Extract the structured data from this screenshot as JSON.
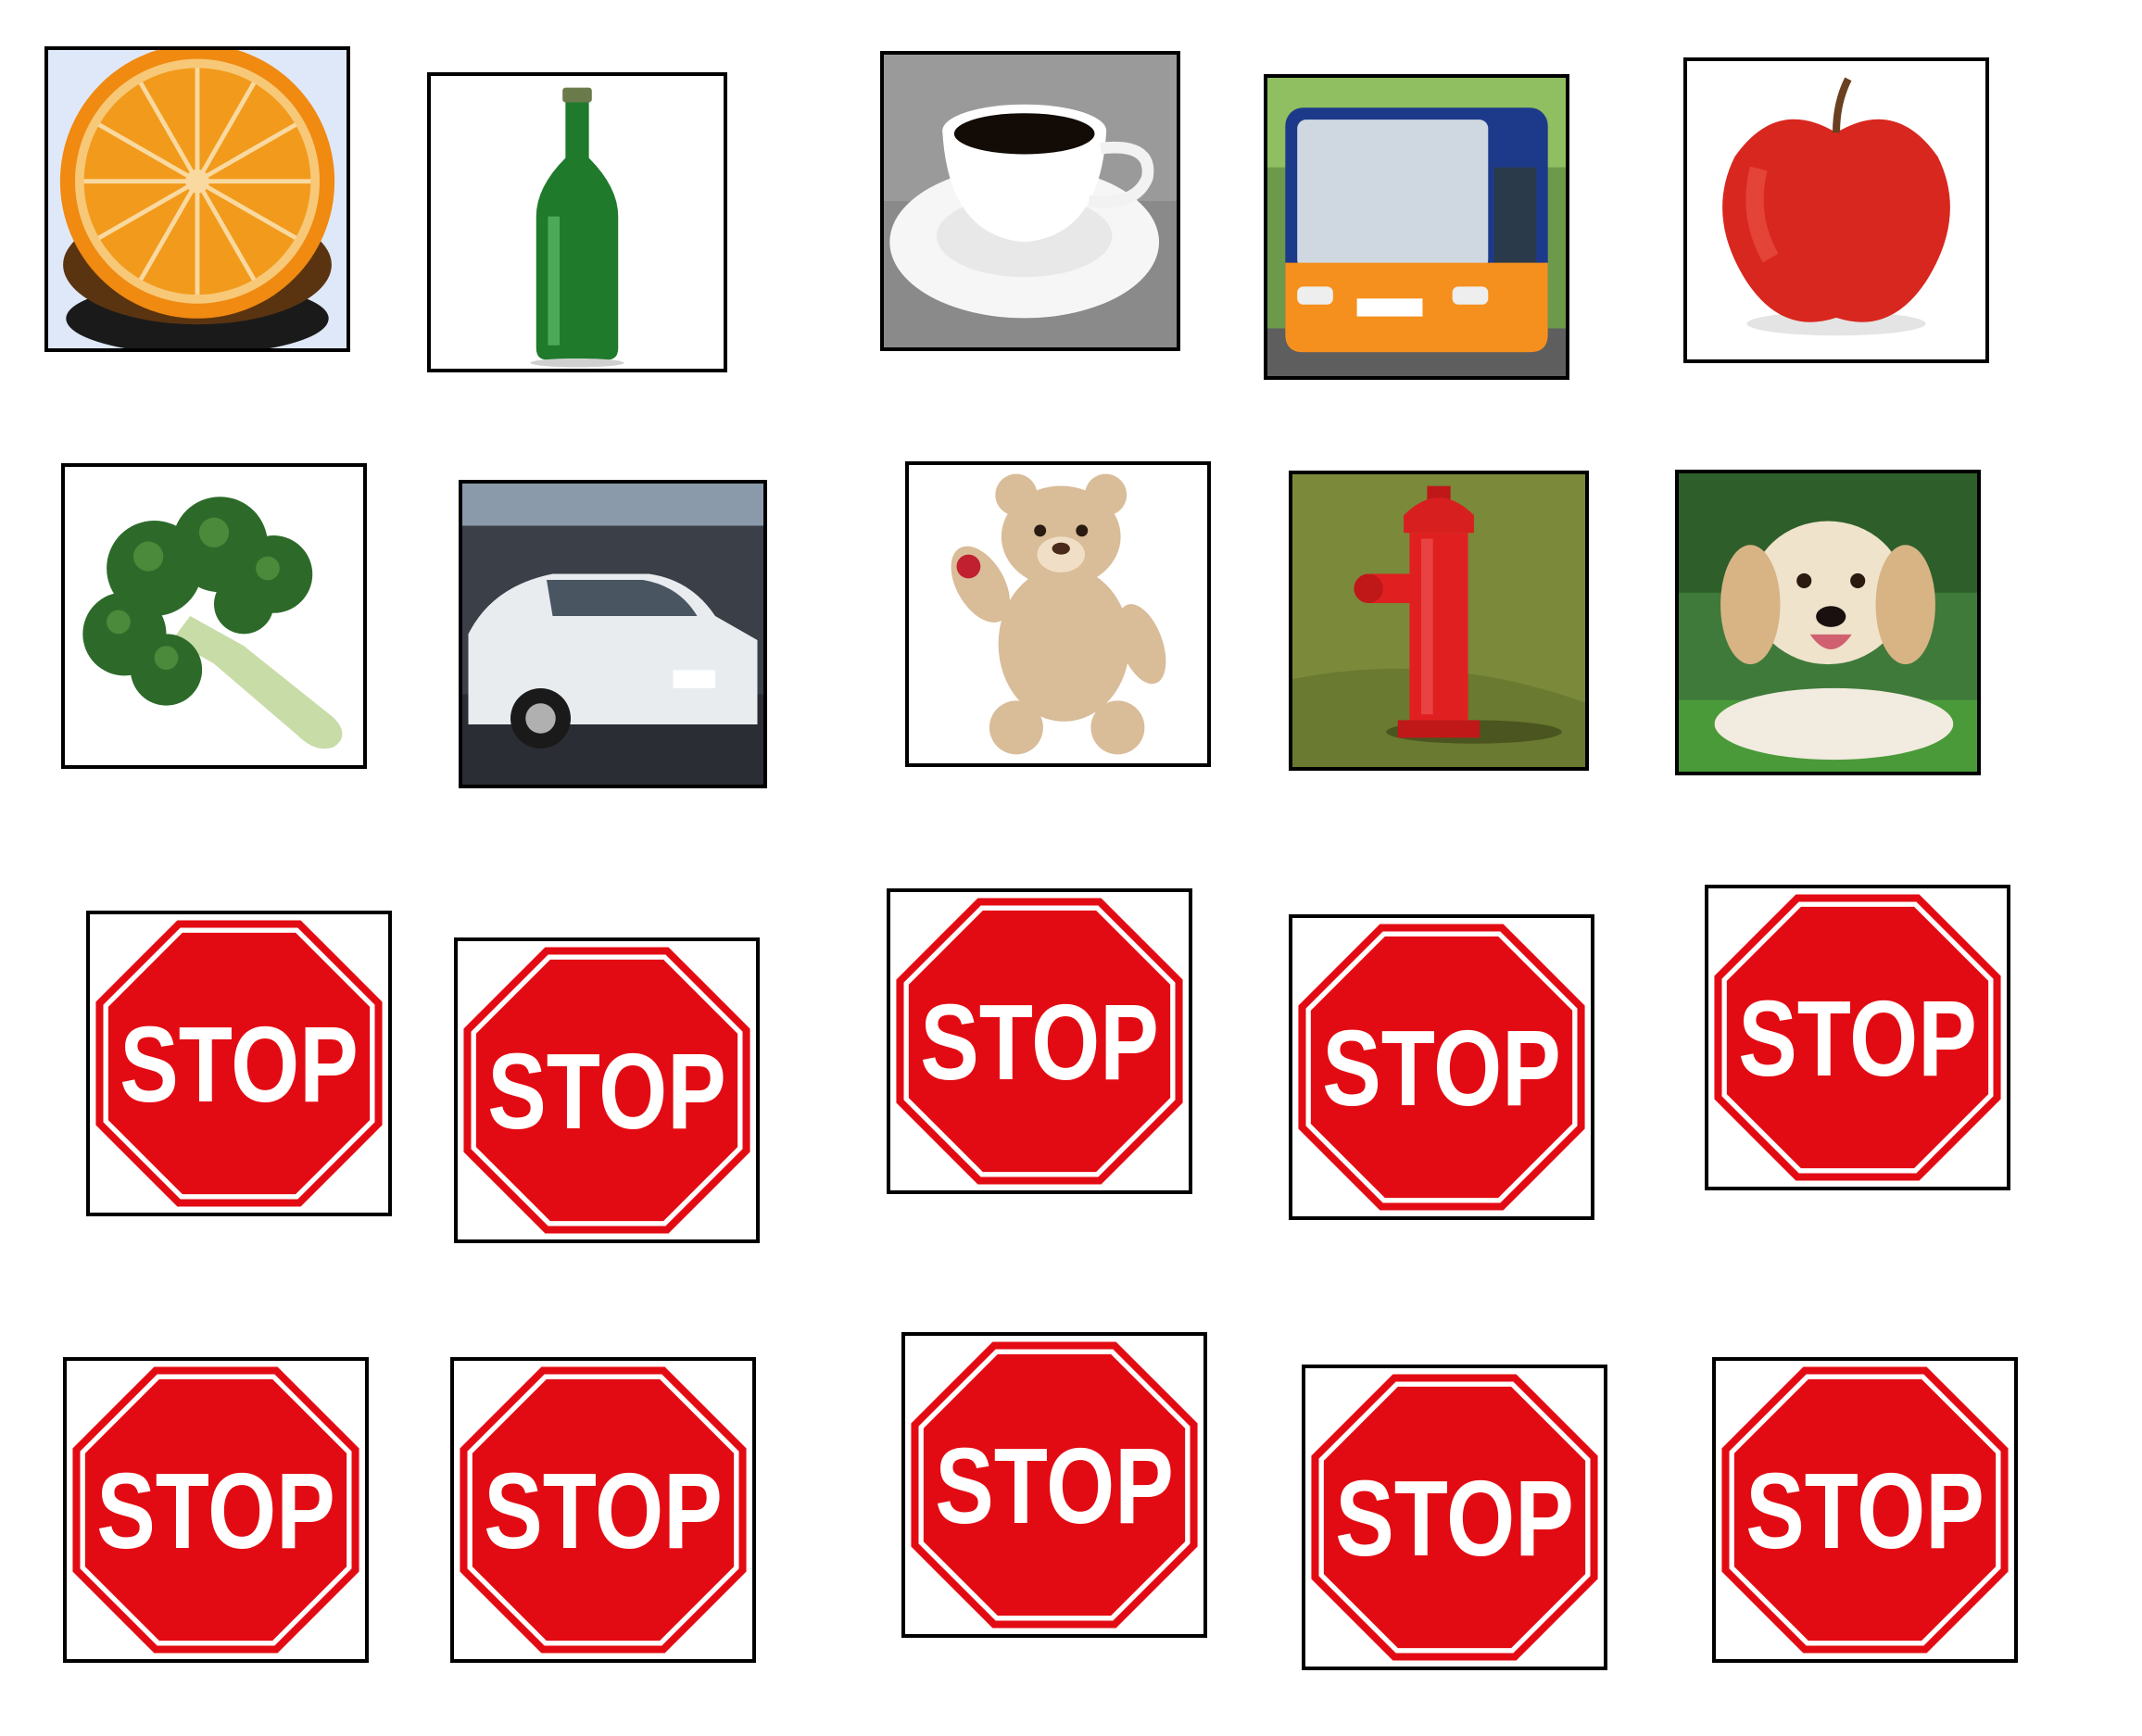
{
  "grid": {
    "row1": [
      {
        "name": "orange-slice"
      },
      {
        "name": "green-bottle"
      },
      {
        "name": "coffee-cup"
      },
      {
        "name": "bus"
      },
      {
        "name": "apple"
      }
    ],
    "row2": [
      {
        "name": "broccoli"
      },
      {
        "name": "car"
      },
      {
        "name": "teddy-bear"
      },
      {
        "name": "fire-hydrant"
      },
      {
        "name": "puppy"
      }
    ],
    "stop_signs": [
      {
        "text": "STOP"
      },
      {
        "text": "STOP"
      },
      {
        "text": "STOP"
      },
      {
        "text": "STOP"
      },
      {
        "text": "STOP"
      },
      {
        "text": "STOP"
      },
      {
        "text": "STOP"
      },
      {
        "text": "STOP"
      },
      {
        "text": "STOP"
      },
      {
        "text": "STOP"
      }
    ]
  },
  "colors": {
    "stop_red": "#e30b13",
    "border": "#000000"
  }
}
